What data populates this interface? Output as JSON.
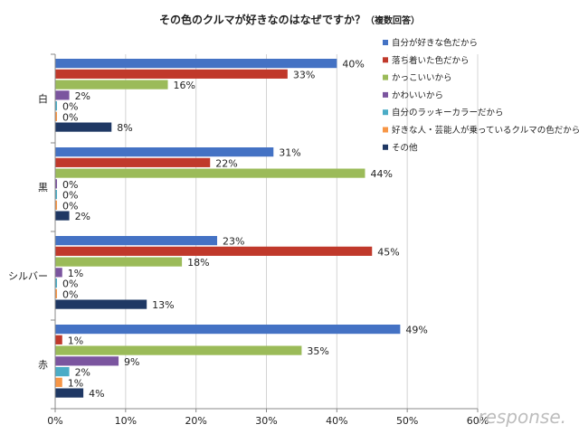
{
  "chart_data": {
    "type": "bar",
    "orientation": "horizontal",
    "title": "その色のクルマが好きなのはなぜですか？",
    "title_note": "（複数回答）",
    "categories": [
      "白",
      "黒",
      "シルバー",
      "赤"
    ],
    "xlim": [
      0,
      60
    ],
    "xticks": [
      "0%",
      "10%",
      "20%",
      "30%",
      "40%",
      "50%",
      "60%"
    ],
    "value_suffix": "%",
    "legend_position": "right",
    "series": [
      {
        "name": "自分が好きな色だから",
        "color": "#4472c4",
        "values": [
          40,
          31,
          23,
          49
        ]
      },
      {
        "name": "落ち着いた色だから",
        "color": "#c0392b",
        "values": [
          33,
          22,
          45,
          1
        ]
      },
      {
        "name": "かっこいいから",
        "color": "#9bbb59",
        "values": [
          16,
          44,
          18,
          35
        ]
      },
      {
        "name": "かわいいから",
        "color": "#7b559f",
        "values": [
          2,
          0,
          1,
          9
        ]
      },
      {
        "name": "自分のラッキーカラーだから",
        "color": "#4bacc6",
        "values": [
          0,
          0,
          0,
          2
        ]
      },
      {
        "name": "好きな人・芸能人が乗っているクルマの色だから",
        "color": "#f79646",
        "values": [
          0,
          0,
          0,
          1
        ]
      },
      {
        "name": "その他",
        "color": "#1f3864",
        "values": [
          8,
          2,
          13,
          4
        ]
      }
    ]
  },
  "watermark": {
    "text": "response."
  }
}
